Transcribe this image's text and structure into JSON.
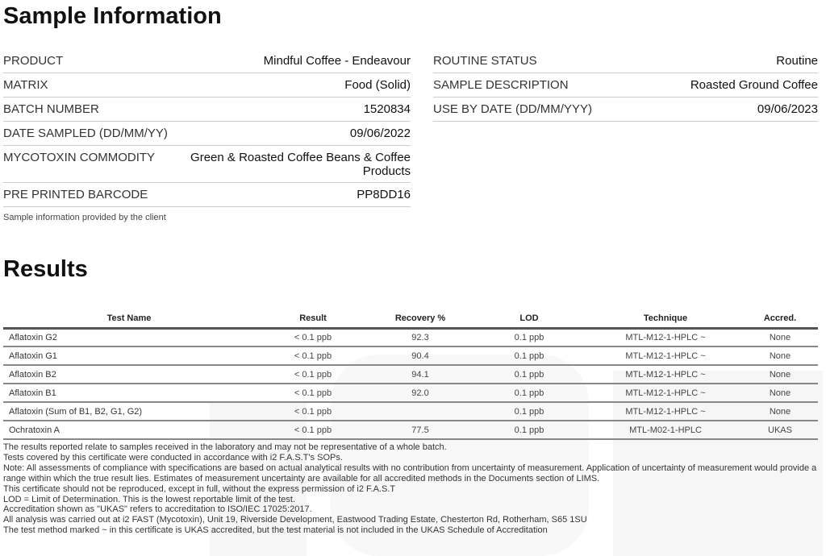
{
  "sample_title": "Sample Information",
  "left": [
    {
      "key": "PRODUCT",
      "value": "Mindful Coffee - Endeavour"
    },
    {
      "key": "MATRIX",
      "value": "Food (Solid)"
    },
    {
      "key": "BATCH NUMBER",
      "value": "1520834"
    },
    {
      "key": "DATE SAMPLED (DD/MM/YY)",
      "value": "09/06/2022"
    },
    {
      "key": "MYCOTOXIN COMMODITY",
      "value": "Green & Roasted Coffee Beans & Coffee Products"
    },
    {
      "key": "PRE PRINTED BARCODE",
      "value": "PP8DD16"
    }
  ],
  "right": [
    {
      "key": "ROUTINE STATUS",
      "value": "Routine"
    },
    {
      "key": "SAMPLE DESCRIPTION",
      "value": "Roasted Ground Coffee"
    },
    {
      "key": "USE BY DATE (DD/MM/YYY)",
      "value": "09/06/2023"
    }
  ],
  "sample_note": "Sample information provided by the client",
  "results_title": "Results",
  "headers": [
    "Test Name",
    "Result",
    "Recovery %",
    "LOD",
    "Technique",
    "Accred."
  ],
  "rows": [
    [
      "Aflatoxin G2",
      "< 0.1 ppb",
      "92.3",
      "0.1 ppb",
      "MTL-M12-1-HPLC ~",
      "None"
    ],
    [
      "Aflatoxin G1",
      "< 0.1 ppb",
      "90.4",
      "0.1 ppb",
      "MTL-M12-1-HPLC ~",
      "None"
    ],
    [
      "Aflatoxin B2",
      "< 0.1 ppb",
      "94.1",
      "0.1 ppb",
      "MTL-M12-1-HPLC ~",
      "None"
    ],
    [
      "Aflatoxin B1",
      "< 0.1 ppb",
      "92.0",
      "0.1 ppb",
      "MTL-M12-1-HPLC ~",
      "None"
    ],
    [
      "Aflatoxin (Sum of B1, B2, G1, G2)",
      "< 0.1 ppb",
      "",
      "0.1 ppb",
      "MTL-M12-1-HPLC ~",
      "None"
    ],
    [
      "Ochratoxin A",
      "< 0.1 ppb",
      "77.5",
      "0.1 ppb",
      "MTL-M02-1-HPLC",
      "UKAS"
    ]
  ],
  "notes": [
    "The results reported relate to samples received in the laboratory and may not be representative of a whole batch.",
    "Tests covered by this certificate were conducted in accordance with i2 F.A.S.T's SOPs.",
    "Note: All assessments of compliance with specifications are based on actual analytical results with no contribution from uncertainty of measurement. Application of uncertainty of measurement would provide a range within which the true result lies. Estimates of measurement uncertainty are available for all accredited methods in the Documents section of LIMS.",
    "This certificate should not be reproduced, except in full, without the express permission of i2 F.A.S.T",
    "LOD = Limit of Determination. This is the lowest reportable limit of the test.",
    "Accreditation shown as \"UKAS\" refers to accreditation to ISO/IEC 17025:2017.",
    "All analysis was carried out at i2 FAST (Mycotoxin), Unit 19, Riverside Development, Eastwood Trading Estate, Chesterton Rd, Rotherham, S65 1SU",
    "The test method marked ~ in this certificate is UKAS accredited, but the test material is not included in the UKAS Schedule of Accreditation"
  ]
}
